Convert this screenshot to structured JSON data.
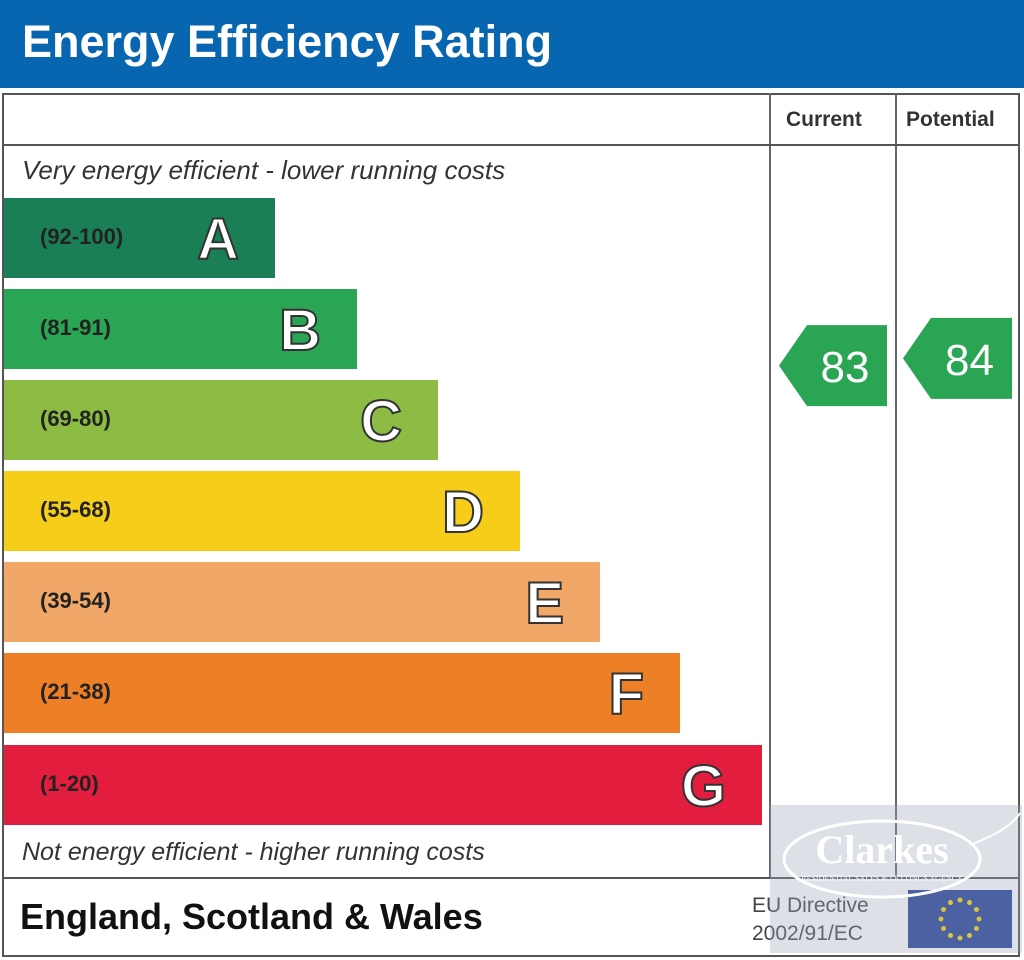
{
  "title": "Energy Efficiency Rating",
  "chart_data": {
    "type": "bar",
    "title": "Energy Efficiency Rating",
    "columns": [
      "Current",
      "Potential"
    ],
    "top_note": "Very energy efficient - lower running costs",
    "bottom_note": "Not energy efficient - higher running costs",
    "bands": [
      {
        "letter": "A",
        "range": "(92-100)",
        "color": "#1a7f54"
      },
      {
        "letter": "B",
        "range": "(81-91)",
        "color": "#2aa553"
      },
      {
        "letter": "C",
        "range": "(69-80)",
        "color": "#8cbc44"
      },
      {
        "letter": "D",
        "range": "(55-68)",
        "color": "#f6cd19"
      },
      {
        "letter": "E",
        "range": "(39-54)",
        "color": "#f1a768"
      },
      {
        "letter": "F",
        "range": "(21-38)",
        "color": "#ed8027"
      },
      {
        "letter": "G",
        "range": "(1-20)",
        "color": "#e31d3e"
      }
    ],
    "current": 83,
    "potential": 84,
    "rating_color": "#2aa553"
  },
  "footer": {
    "region": "England, Scotland & Wales",
    "eu_line1": "EU Directive",
    "eu_line2": "2002/91/EC"
  },
  "watermark": {
    "name": "Clarkes",
    "tagline": "RESIDENTIAL SALES & LETTINGS AGENCY"
  }
}
